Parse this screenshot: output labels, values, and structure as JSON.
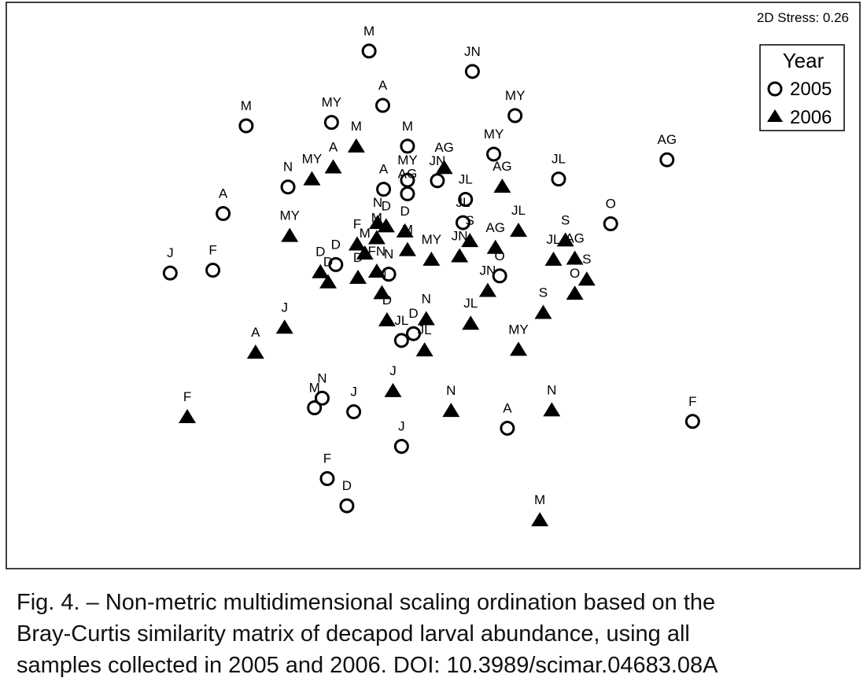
{
  "chart_data": {
    "type": "scatter",
    "title": "",
    "xlabel": "",
    "ylabel": "",
    "stress_label": "2D Stress: 0.26",
    "legend": {
      "title": "Year",
      "position": "top-right",
      "entries": [
        {
          "label": "2005",
          "marker": "circle"
        },
        {
          "label": "2006",
          "marker": "triangle"
        }
      ]
    },
    "axes_visible": false,
    "grid": false,
    "xlim": [
      0,
      100
    ],
    "ylim": [
      0,
      100
    ],
    "series": [
      {
        "name": "2005",
        "marker": "circle",
        "points": [
          {
            "label": "M",
            "x": 42.5,
            "y": 91.4
          },
          {
            "label": "JN",
            "x": 54.6,
            "y": 87.8
          },
          {
            "label": "MY",
            "x": 59.6,
            "y": 80.0
          },
          {
            "label": "M",
            "x": 28.1,
            "y": 78.2
          },
          {
            "label": "MY",
            "x": 38.1,
            "y": 78.8
          },
          {
            "label": "A",
            "x": 44.1,
            "y": 81.8
          },
          {
            "label": "M",
            "x": 47.0,
            "y": 74.6
          },
          {
            "label": "MY",
            "x": 57.1,
            "y": 73.2
          },
          {
            "label": "AG",
            "x": 77.4,
            "y": 72.2
          },
          {
            "label": "JL",
            "x": 64.7,
            "y": 68.8
          },
          {
            "label": "MY",
            "x": 47.0,
            "y": 68.6
          },
          {
            "label": "JN",
            "x": 50.5,
            "y": 68.5
          },
          {
            "label": "N",
            "x": 33.0,
            "y": 67.4
          },
          {
            "label": "A",
            "x": 44.2,
            "y": 67.0
          },
          {
            "label": "AG",
            "x": 47.0,
            "y": 66.2
          },
          {
            "label": "JL",
            "x": 53.8,
            "y": 65.2
          },
          {
            "label": "A",
            "x": 25.4,
            "y": 62.7
          },
          {
            "label": "JL",
            "x": 53.5,
            "y": 61.1
          },
          {
            "label": "O",
            "x": 70.8,
            "y": 60.9
          },
          {
            "label": "D",
            "x": 38.6,
            "y": 53.7
          },
          {
            "label": "J",
            "x": 19.2,
            "y": 52.2
          },
          {
            "label": "F",
            "x": 24.2,
            "y": 52.7
          },
          {
            "label": "N",
            "x": 44.8,
            "y": 52.0
          },
          {
            "label": "O",
            "x": 57.8,
            "y": 51.7
          },
          {
            "label": "D",
            "x": 47.7,
            "y": 41.5
          },
          {
            "label": "JL",
            "x": 46.3,
            "y": 40.3
          },
          {
            "label": "N",
            "x": 37.0,
            "y": 30.1
          },
          {
            "label": "M",
            "x": 36.1,
            "y": 28.4
          },
          {
            "label": "J",
            "x": 40.7,
            "y": 27.7
          },
          {
            "label": "A",
            "x": 58.7,
            "y": 24.8
          },
          {
            "label": "F",
            "x": 80.4,
            "y": 26.0
          },
          {
            "label": "J",
            "x": 46.3,
            "y": 21.6
          },
          {
            "label": "F",
            "x": 37.6,
            "y": 15.9
          },
          {
            "label": "D",
            "x": 39.9,
            "y": 11.1
          }
        ]
      },
      {
        "name": "2006",
        "marker": "triangle",
        "points": [
          {
            "label": "M",
            "x": 41.0,
            "y": 74.6
          },
          {
            "label": "A",
            "x": 38.3,
            "y": 70.9
          },
          {
            "label": "MY",
            "x": 35.8,
            "y": 68.8
          },
          {
            "label": "AG",
            "x": 51.3,
            "y": 70.8
          },
          {
            "label": "AG",
            "x": 58.1,
            "y": 67.5
          },
          {
            "label": "MY",
            "x": 33.2,
            "y": 58.8
          },
          {
            "label": "N",
            "x": 43.5,
            "y": 61.1
          },
          {
            "label": "D",
            "x": 44.5,
            "y": 60.5
          },
          {
            "label": "D",
            "x": 46.7,
            "y": 59.6
          },
          {
            "label": "JL",
            "x": 60.0,
            "y": 59.7
          },
          {
            "label": "F",
            "x": 41.1,
            "y": 57.3
          },
          {
            "label": "M",
            "x": 43.4,
            "y": 58.4
          },
          {
            "label": "M",
            "x": 42.0,
            "y": 55.7
          },
          {
            "label": "M",
            "x": 47.0,
            "y": 56.3
          },
          {
            "label": "S",
            "x": 54.3,
            "y": 57.9
          },
          {
            "label": "S",
            "x": 65.5,
            "y": 58.0
          },
          {
            "label": "AG",
            "x": 57.3,
            "y": 56.7
          },
          {
            "label": "MY",
            "x": 49.8,
            "y": 54.6
          },
          {
            "label": "JN",
            "x": 53.1,
            "y": 55.2
          },
          {
            "label": "JL",
            "x": 64.1,
            "y": 54.6
          },
          {
            "label": "AG",
            "x": 66.6,
            "y": 54.8
          },
          {
            "label": "D",
            "x": 36.8,
            "y": 52.4
          },
          {
            "label": "D",
            "x": 37.7,
            "y": 50.6
          },
          {
            "label": "D",
            "x": 41.2,
            "y": 51.4
          },
          {
            "label": "FN",
            "x": 43.4,
            "y": 52.5
          },
          {
            "label": "S",
            "x": 68.0,
            "y": 51.1
          },
          {
            "label": "JN",
            "x": 56.4,
            "y": 49.1
          },
          {
            "label": "N",
            "x": 44.0,
            "y": 48.7
          },
          {
            "label": "O",
            "x": 66.6,
            "y": 48.6
          },
          {
            "label": "N",
            "x": 49.2,
            "y": 44.1
          },
          {
            "label": "D",
            "x": 44.6,
            "y": 43.9
          },
          {
            "label": "JL",
            "x": 54.4,
            "y": 43.3
          },
          {
            "label": "S",
            "x": 62.9,
            "y": 45.2
          },
          {
            "label": "J",
            "x": 32.6,
            "y": 42.6
          },
          {
            "label": "JL",
            "x": 49.0,
            "y": 38.6
          },
          {
            "label": "A",
            "x": 29.2,
            "y": 38.2
          },
          {
            "label": "MY",
            "x": 60.0,
            "y": 38.7
          },
          {
            "label": "J",
            "x": 45.3,
            "y": 31.4
          },
          {
            "label": "N",
            "x": 52.1,
            "y": 27.9
          },
          {
            "label": "N",
            "x": 63.9,
            "y": 28.0
          },
          {
            "label": "F",
            "x": 21.2,
            "y": 26.8
          },
          {
            "label": "M",
            "x": 62.5,
            "y": 8.6
          }
        ]
      }
    ]
  },
  "caption": {
    "line1": "Fig. 4. – Non-metric multidimensional scaling ordination based on the",
    "line2": "Bray-Curtis similarity matrix of decapod larval abundance, using all",
    "line3": "samples collected in 2005 and 2006. DOI: 10.3989/scimar.04683.08A"
  }
}
